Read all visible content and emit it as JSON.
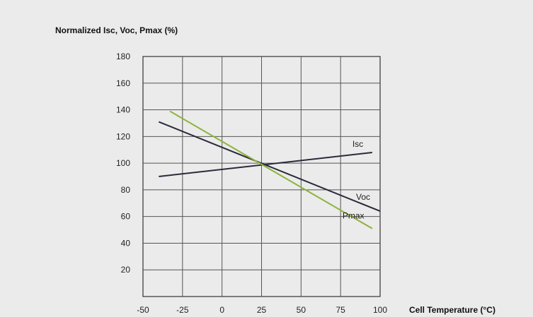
{
  "chart_data": {
    "type": "line",
    "ylabel": "Normalized Isc, Voc, Pmax (%)",
    "xlabel": "Cell Temperature (°C)",
    "x_ticks": [
      -50,
      -25,
      0,
      25,
      50,
      75,
      100
    ],
    "y_ticks": [
      20,
      40,
      60,
      80,
      100,
      120,
      140,
      160,
      180
    ],
    "xlim": [
      -50,
      100
    ],
    "ylim": [
      0,
      180
    ],
    "grid": true,
    "series": [
      {
        "name": "Isc",
        "color": "#2a2a3a",
        "x": [
          -40,
          95
        ],
        "y": [
          90,
          108
        ]
      },
      {
        "name": "Voc",
        "color": "#2a2a3a",
        "x": [
          -40,
          100
        ],
        "y": [
          131,
          64
        ]
      },
      {
        "name": "Pmax",
        "color": "#8db33a",
        "x": [
          -33,
          95
        ],
        "y": [
          139,
          51
        ]
      }
    ]
  }
}
